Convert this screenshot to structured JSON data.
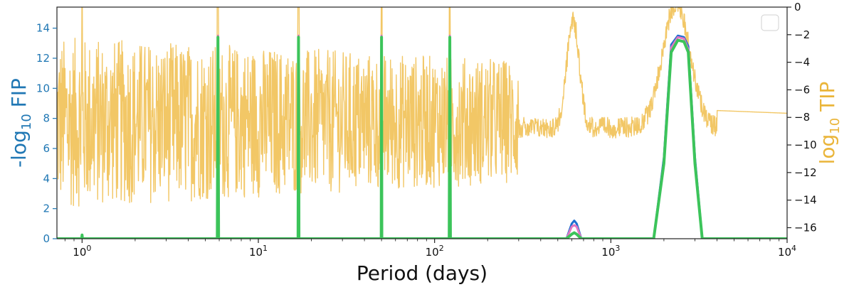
{
  "chart_data": {
    "type": "line",
    "xlabel": "Period (days)",
    "ylabel_left": "-log10 FIP",
    "ylabel_right": "log10 TIP",
    "xscale": "log",
    "xlim": [
      0.72,
      10000
    ],
    "ylim_left": [
      0,
      15.4
    ],
    "ylim_right": [
      -16.8,
      0
    ],
    "x_ticks": [
      {
        "value": 1,
        "base": "10",
        "exp": "0"
      },
      {
        "value": 10,
        "base": "10",
        "exp": "1"
      },
      {
        "value": 100,
        "base": "10",
        "exp": "2"
      },
      {
        "value": 1000,
        "base": "10",
        "exp": "3"
      },
      {
        "value": 10000,
        "base": "10",
        "exp": "4"
      }
    ],
    "y_ticks_left": [
      0,
      2,
      4,
      6,
      8,
      10,
      12,
      14
    ],
    "y_ticks_right": [
      0,
      -2,
      -4,
      -6,
      -8,
      -10,
      -12,
      -14,
      -16
    ],
    "colors": {
      "left_axis": "#1f77b4",
      "right_axis": "#eab53a",
      "tip": "#f2c766",
      "fip_green": "#3cc45a",
      "fip_pink": "#e377c2",
      "fip_blue": "#1f6fd0"
    },
    "legend": "top-right, empty",
    "series": [
      {
        "axis": "left",
        "color": "#3cc45a",
        "points": [
          [
            0.72,
            0
          ],
          [
            0.995,
            0
          ],
          [
            1.0,
            0.25
          ],
          [
            1.005,
            0
          ],
          [
            5.85,
            0
          ],
          [
            5.9,
            13.4
          ],
          [
            5.95,
            0
          ],
          [
            16.8,
            0
          ],
          [
            16.9,
            13.4
          ],
          [
            17.0,
            0
          ],
          [
            49.8,
            0
          ],
          [
            50.0,
            13.4
          ],
          [
            50.2,
            0
          ],
          [
            121,
            0
          ],
          [
            122,
            13.4
          ],
          [
            123,
            0
          ],
          [
            560,
            0
          ],
          [
            600,
            0.3
          ],
          [
            620,
            0.4
          ],
          [
            640,
            0.3
          ],
          [
            680,
            0
          ],
          [
            1750,
            0
          ],
          [
            2000,
            5
          ],
          [
            2200,
            12.4
          ],
          [
            2400,
            13.2
          ],
          [
            2600,
            13.1
          ],
          [
            2750,
            12.4
          ],
          [
            3000,
            5
          ],
          [
            3300,
            0
          ],
          [
            10000,
            0
          ]
        ]
      },
      {
        "axis": "left",
        "color": "#e377c2",
        "points": [
          [
            0.72,
            0
          ],
          [
            5.85,
            0
          ],
          [
            5.9,
            13.5
          ],
          [
            5.95,
            0
          ],
          [
            16.8,
            0
          ],
          [
            16.9,
            13.5
          ],
          [
            17.0,
            0
          ],
          [
            49.8,
            0
          ],
          [
            50.0,
            13.5
          ],
          [
            50.2,
            0
          ],
          [
            121,
            0
          ],
          [
            122,
            13.5
          ],
          [
            123,
            0
          ],
          [
            560,
            0
          ],
          [
            600,
            0.8
          ],
          [
            620,
            0.9
          ],
          [
            640,
            0.8
          ],
          [
            680,
            0
          ],
          [
            1750,
            0
          ],
          [
            2000,
            5.2
          ],
          [
            2200,
            12.7
          ],
          [
            2400,
            13.4
          ],
          [
            2600,
            13.3
          ],
          [
            2750,
            12.6
          ],
          [
            3000,
            5.2
          ],
          [
            3300,
            0
          ],
          [
            10000,
            0
          ]
        ]
      },
      {
        "axis": "left",
        "color": "#1f6fd0",
        "points": [
          [
            0.72,
            0
          ],
          [
            560,
            0
          ],
          [
            600,
            1.0
          ],
          [
            620,
            1.2
          ],
          [
            640,
            1.0
          ],
          [
            680,
            0
          ],
          [
            1750,
            0
          ],
          [
            2000,
            5.4
          ],
          [
            2200,
            12.9
          ],
          [
            2400,
            13.5
          ],
          [
            2600,
            13.4
          ],
          [
            2750,
            12.8
          ],
          [
            3000,
            5.4
          ],
          [
            3300,
            0
          ],
          [
            10000,
            0
          ]
        ]
      }
    ]
  }
}
